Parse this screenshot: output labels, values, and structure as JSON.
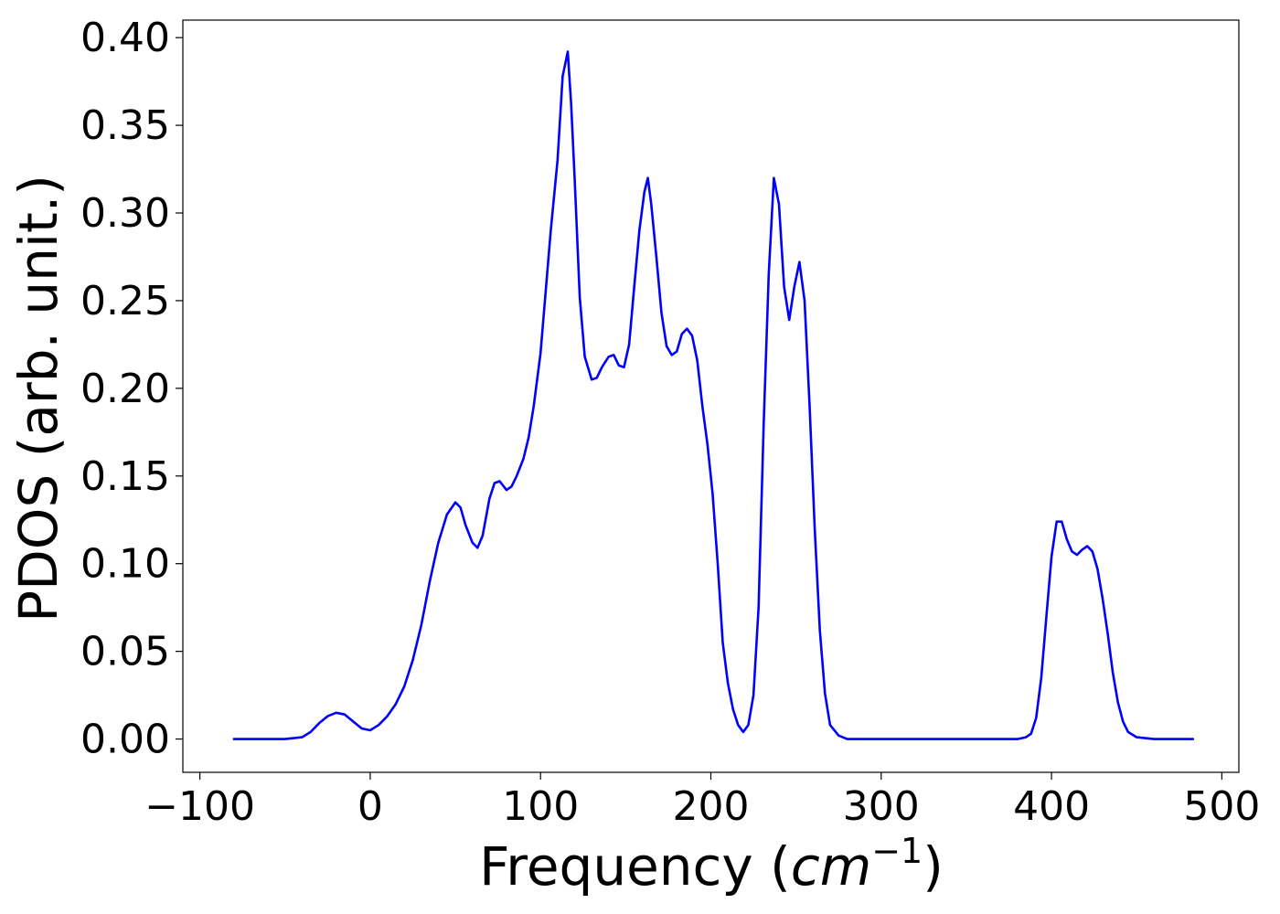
{
  "chart_data": {
    "type": "line",
    "title": "",
    "xlabel": "Frequency (cm⁻¹)",
    "xlabel_parts": {
      "prefix": "Frequency (",
      "unit_base": "cm",
      "unit_exponent": "−1",
      "suffix": ")"
    },
    "ylabel": "PDOS (arb. unit.)",
    "xlim": [
      -110,
      510
    ],
    "ylim": [
      -0.019,
      0.41
    ],
    "xticks": [
      -100,
      0,
      100,
      200,
      300,
      400,
      500
    ],
    "xtick_labels": [
      "−100",
      "0",
      "100",
      "200",
      "300",
      "400",
      "500"
    ],
    "yticks": [
      0.0,
      0.05,
      0.1,
      0.15,
      0.2,
      0.25,
      0.3,
      0.35,
      0.4
    ],
    "ytick_labels": [
      "0.00",
      "0.05",
      "0.10",
      "0.15",
      "0.20",
      "0.25",
      "0.30",
      "0.35",
      "0.40"
    ],
    "grid": false,
    "legend": "none",
    "series": [
      {
        "color": "#0000ff",
        "x": [
          -80,
          -50,
          -40,
          -35,
          -30,
          -25,
          -20,
          -15,
          -10,
          -5,
          0,
          5,
          10,
          15,
          20,
          25,
          30,
          35,
          40,
          45,
          50,
          53,
          56,
          60,
          63,
          66,
          70,
          73,
          76,
          80,
          83,
          86,
          90,
          93,
          96,
          100,
          103,
          106,
          110,
          113,
          116,
          118,
          120,
          123,
          126,
          130,
          133,
          136,
          140,
          143,
          146,
          149,
          152,
          155,
          158,
          161,
          163,
          165,
          168,
          171,
          174,
          177,
          180,
          183,
          186,
          189,
          192,
          195,
          198,
          201,
          204,
          207,
          210,
          213,
          216,
          219,
          222,
          225,
          228,
          231,
          234,
          237,
          240,
          243,
          246,
          249,
          252,
          255,
          258,
          261,
          264,
          267,
          270,
          275,
          280,
          300,
          350,
          380,
          385,
          388,
          391,
          394,
          397,
          400,
          403,
          406,
          409,
          412,
          415,
          418,
          421,
          424,
          427,
          430,
          433,
          436,
          439,
          442,
          445,
          450,
          460,
          483
        ],
        "y": [
          0.0,
          0.0,
          0.001,
          0.004,
          0.009,
          0.013,
          0.015,
          0.014,
          0.01,
          0.006,
          0.005,
          0.008,
          0.013,
          0.02,
          0.03,
          0.045,
          0.065,
          0.09,
          0.112,
          0.128,
          0.135,
          0.132,
          0.122,
          0.112,
          0.109,
          0.116,
          0.137,
          0.146,
          0.147,
          0.142,
          0.144,
          0.15,
          0.16,
          0.172,
          0.19,
          0.22,
          0.255,
          0.29,
          0.33,
          0.378,
          0.392,
          0.362,
          0.32,
          0.252,
          0.218,
          0.205,
          0.206,
          0.212,
          0.218,
          0.219,
          0.213,
          0.212,
          0.225,
          0.258,
          0.29,
          0.312,
          0.32,
          0.305,
          0.275,
          0.243,
          0.224,
          0.219,
          0.221,
          0.231,
          0.234,
          0.23,
          0.216,
          0.19,
          0.168,
          0.14,
          0.1,
          0.055,
          0.032,
          0.017,
          0.008,
          0.004,
          0.008,
          0.025,
          0.075,
          0.18,
          0.265,
          0.32,
          0.305,
          0.258,
          0.239,
          0.258,
          0.272,
          0.25,
          0.19,
          0.12,
          0.062,
          0.026,
          0.008,
          0.002,
          0.0,
          0.0,
          0.0,
          0.0,
          0.001,
          0.003,
          0.012,
          0.035,
          0.07,
          0.104,
          0.124,
          0.124,
          0.114,
          0.107,
          0.105,
          0.108,
          0.11,
          0.107,
          0.097,
          0.08,
          0.06,
          0.038,
          0.021,
          0.01,
          0.004,
          0.001,
          0.0,
          0.0
        ]
      }
    ]
  }
}
